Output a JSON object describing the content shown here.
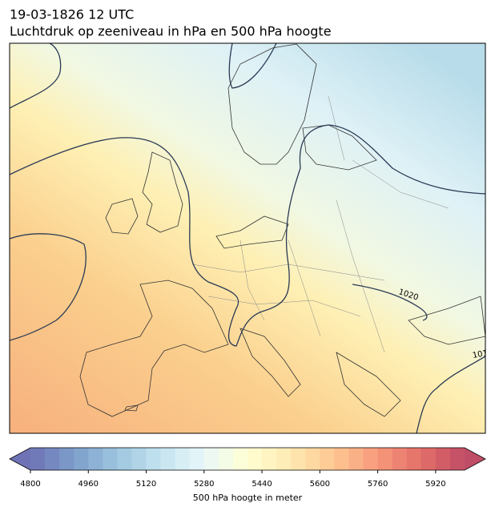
{
  "header": {
    "date": "19-03-1826 12 UTC",
    "title": "Luchtdruk op zeeniveau in hPa en 500 hPa hoogte"
  },
  "map": {
    "contour_labels": [
      "1020",
      "101"
    ]
  },
  "colorbar": {
    "range": [
      4800,
      6000
    ],
    "ticks": [
      4800,
      4960,
      5120,
      5280,
      5440,
      5600,
      5760,
      5920
    ],
    "label": "500 hPa hoogte in meter"
  }
}
